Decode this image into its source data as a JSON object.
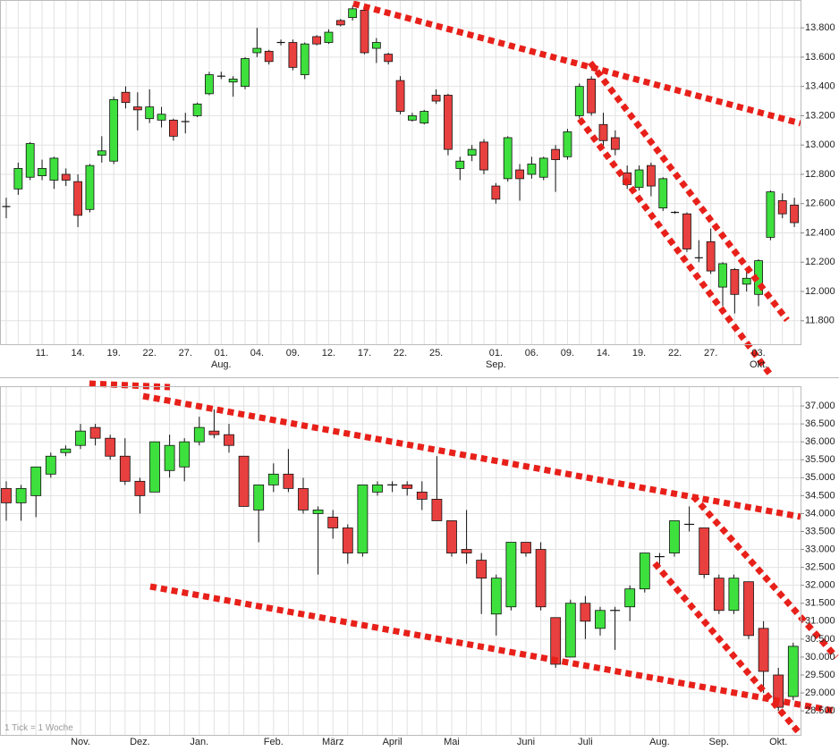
{
  "chart_data": [
    {
      "type": "candlestick",
      "categories": [
        null,
        null,
        null,
        "11.",
        null,
        null,
        "14.",
        null,
        null,
        "19.",
        null,
        null,
        "22.",
        null,
        null,
        "27.",
        null,
        null,
        "01.\nAug.",
        null,
        null,
        "04.",
        null,
        null,
        "09.",
        null,
        null,
        "12.",
        null,
        null,
        "17.",
        null,
        null,
        "22.",
        null,
        null,
        "25.",
        null,
        null,
        null,
        null,
        "01.\nSep.",
        null,
        null,
        "06.",
        null,
        null,
        "09.",
        null,
        null,
        "14.",
        null,
        null,
        "19.",
        null,
        null,
        "22.",
        null,
        null,
        "27.",
        null,
        null,
        null,
        "03.\nOkt.",
        null,
        null,
        null
      ],
      "open": [
        12580,
        12700,
        12780,
        12790,
        12760,
        12800,
        12750,
        12560,
        12930,
        12890,
        13360,
        13260,
        13180,
        13170,
        13170,
        13160,
        13200,
        13350,
        13470,
        13430,
        13400,
        13630,
        13640,
        13700,
        13700,
        13480,
        13740,
        13700,
        13850,
        13870,
        13920,
        13660,
        13620,
        13440,
        13170,
        13150,
        13340,
        13340,
        12840,
        12930,
        13020,
        12720,
        12770,
        12830,
        12800,
        12780,
        12970,
        12920,
        13200,
        13450,
        13140,
        13050,
        12810,
        12710,
        12860,
        12570,
        12540,
        12530,
        12230,
        12340,
        12030,
        12150,
        12050,
        11980,
        12370,
        12620,
        12590
      ],
      "high": [
        12640,
        12880,
        13020,
        12900,
        12920,
        12840,
        12800,
        12870,
        13060,
        13330,
        13400,
        13360,
        13380,
        13260,
        13180,
        13220,
        13290,
        13500,
        13500,
        13470,
        13600,
        13800,
        13650,
        13720,
        13720,
        13700,
        13750,
        13790,
        13860,
        13950,
        13950,
        13730,
        13630,
        13470,
        13220,
        13240,
        13380,
        13350,
        12920,
        13000,
        13040,
        12740,
        13060,
        12870,
        12920,
        12920,
        13000,
        13110,
        13420,
        13470,
        13220,
        13100,
        12860,
        12860,
        12880,
        12780,
        12550,
        12540,
        12350,
        12430,
        12200,
        12160,
        12150,
        12220,
        12690,
        12670,
        12640
      ],
      "low": [
        12500,
        12660,
        12760,
        12760,
        12700,
        12720,
        12440,
        12540,
        12880,
        12870,
        13250,
        13100,
        13150,
        13120,
        13030,
        13080,
        13190,
        13340,
        13450,
        13330,
        13380,
        13600,
        13550,
        13680,
        13510,
        13450,
        13680,
        13690,
        13810,
        13850,
        13620,
        13560,
        13550,
        13210,
        13160,
        13140,
        13280,
        12930,
        12760,
        12890,
        12800,
        12600,
        12750,
        12620,
        12770,
        12760,
        12680,
        12900,
        13180,
        13200,
        12980,
        12930,
        12700,
        12690,
        12650,
        12550,
        12530,
        12270,
        12200,
        12120,
        11900,
        11850,
        12000,
        11900,
        12350,
        12500,
        12440
      ],
      "close": [
        12580,
        12840,
        13010,
        12840,
        12910,
        12760,
        12520,
        12860,
        12960,
        13310,
        13290,
        13240,
        13260,
        13210,
        13060,
        13160,
        13280,
        13480,
        13470,
        13450,
        13590,
        13660,
        13570,
        13700,
        13530,
        13690,
        13690,
        13770,
        13820,
        13930,
        13630,
        13700,
        13570,
        13230,
        13200,
        13230,
        13300,
        12970,
        12890,
        12970,
        12830,
        12630,
        13050,
        12770,
        12870,
        12910,
        12900,
        13090,
        13400,
        13220,
        13030,
        12970,
        12730,
        12830,
        12720,
        12770,
        12540,
        12290,
        12230,
        12140,
        12190,
        11980,
        12090,
        12210,
        12680,
        12530,
        12470
      ],
      "up_color": "#3ee03e",
      "down_color": "#e8403f",
      "ylim": [
        11640,
        13990
      ],
      "yticks": [
        {
          "value": 13800,
          "label": "13.800"
        },
        {
          "value": 13600,
          "label": "13.600"
        },
        {
          "value": 13400,
          "label": "13.400"
        },
        {
          "value": 13200,
          "label": "13.200"
        },
        {
          "value": 13000,
          "label": "13.000"
        },
        {
          "value": 12800,
          "label": "12.800"
        },
        {
          "value": 12600,
          "label": "12.600"
        },
        {
          "value": 12400,
          "label": "12.400"
        },
        {
          "value": 12200,
          "label": "12.200"
        },
        {
          "value": 12000,
          "label": "12.000"
        },
        {
          "value": 11800,
          "label": "11.800"
        }
      ],
      "grid": true
    },
    {
      "type": "candlestick",
      "note": "1 Tick = 1 Woche",
      "categories": [
        null,
        null,
        null,
        null,
        null,
        "Nov.",
        null,
        null,
        null,
        "Dez.",
        null,
        null,
        null,
        "Jan.",
        null,
        null,
        null,
        null,
        "Feb.",
        null,
        null,
        null,
        "März",
        null,
        null,
        null,
        "April",
        null,
        null,
        null,
        "Mai",
        null,
        null,
        null,
        null,
        "Juni",
        null,
        null,
        null,
        "Juli",
        null,
        null,
        null,
        null,
        "Aug.",
        null,
        null,
        null,
        "Sep.",
        null,
        null,
        null,
        "Okt.",
        null
      ],
      "open": [
        34700,
        34300,
        34500,
        35100,
        35700,
        35900,
        36400,
        36100,
        35600,
        34900,
        34600,
        35200,
        35300,
        36000,
        36300,
        36200,
        35600,
        34100,
        34800,
        35100,
        34700,
        34000,
        33900,
        33600,
        32900,
        34600,
        34800,
        34800,
        34600,
        34400,
        33800,
        33000,
        32700,
        31200,
        31400,
        33200,
        33000,
        31100,
        30000,
        31500,
        30800,
        31300,
        31400,
        31900,
        32800,
        32900,
        33700,
        33600,
        32200,
        31300,
        32100,
        30800,
        29500,
        28900
      ],
      "high": [
        34900,
        34800,
        35300,
        35700,
        35900,
        36500,
        36500,
        36200,
        36100,
        35000,
        36000,
        36200,
        36100,
        36700,
        36900,
        36500,
        35600,
        34800,
        35400,
        35800,
        35000,
        34200,
        34100,
        33700,
        34800,
        34900,
        34900,
        34900,
        34900,
        35600,
        33800,
        34100,
        32900,
        32300,
        33200,
        33200,
        33200,
        31100,
        31600,
        31700,
        31400,
        31400,
        32000,
        32900,
        32900,
        33800,
        34200,
        33600,
        32300,
        32300,
        32100,
        31000,
        29700,
        30400
      ],
      "low": [
        33800,
        33800,
        33900,
        35000,
        35600,
        35800,
        35900,
        35500,
        34800,
        34000,
        34600,
        35000,
        34900,
        35900,
        36100,
        35700,
        34200,
        33200,
        34600,
        34600,
        34000,
        32300,
        33300,
        32600,
        32800,
        34500,
        34600,
        34500,
        34100,
        33800,
        32800,
        32600,
        31200,
        30600,
        31300,
        32800,
        31300,
        29700,
        30000,
        30500,
        30600,
        30200,
        31000,
        31800,
        32500,
        32800,
        33500,
        32200,
        31200,
        31200,
        30500,
        29000,
        28500,
        28800
      ],
      "close": [
        34300,
        34700,
        35300,
        35600,
        35800,
        36300,
        36100,
        35600,
        34900,
        34500,
        36000,
        35900,
        36000,
        36400,
        36200,
        35900,
        34200,
        34800,
        35100,
        34700,
        34100,
        34100,
        33600,
        32900,
        34800,
        34800,
        34800,
        34700,
        34400,
        33800,
        32900,
        32900,
        32200,
        32200,
        33200,
        32900,
        31400,
        29800,
        31500,
        31000,
        31300,
        31300,
        31900,
        32900,
        32800,
        33800,
        33700,
        32300,
        31300,
        32200,
        30600,
        29600,
        28600,
        30300
      ],
      "up_color": "#3ee03e",
      "down_color": "#e8403f",
      "ylim": [
        27830,
        37550
      ],
      "yticks": [
        {
          "value": 37000,
          "label": "37.000"
        },
        {
          "value": 36500,
          "label": "36.500"
        },
        {
          "value": 36000,
          "label": "36.000"
        },
        {
          "value": 35500,
          "label": "35.500"
        },
        {
          "value": 35000,
          "label": "35.000"
        },
        {
          "value": 34500,
          "label": "34.500"
        },
        {
          "value": 34000,
          "label": "34.000"
        },
        {
          "value": 33500,
          "label": "33.500"
        },
        {
          "value": 33000,
          "label": "33.000"
        },
        {
          "value": 32500,
          "label": "32.500"
        },
        {
          "value": 32000,
          "label": "32.000"
        },
        {
          "value": 31500,
          "label": "31.500"
        },
        {
          "value": 31000,
          "label": "31.000"
        },
        {
          "value": 30500,
          "label": "30.500"
        },
        {
          "value": 30000,
          "label": "30.000"
        },
        {
          "value": 29500,
          "label": "29.500"
        },
        {
          "value": 29000,
          "label": "29.000"
        },
        {
          "value": 28500,
          "label": "28.500"
        }
      ],
      "grid": true
    }
  ]
}
